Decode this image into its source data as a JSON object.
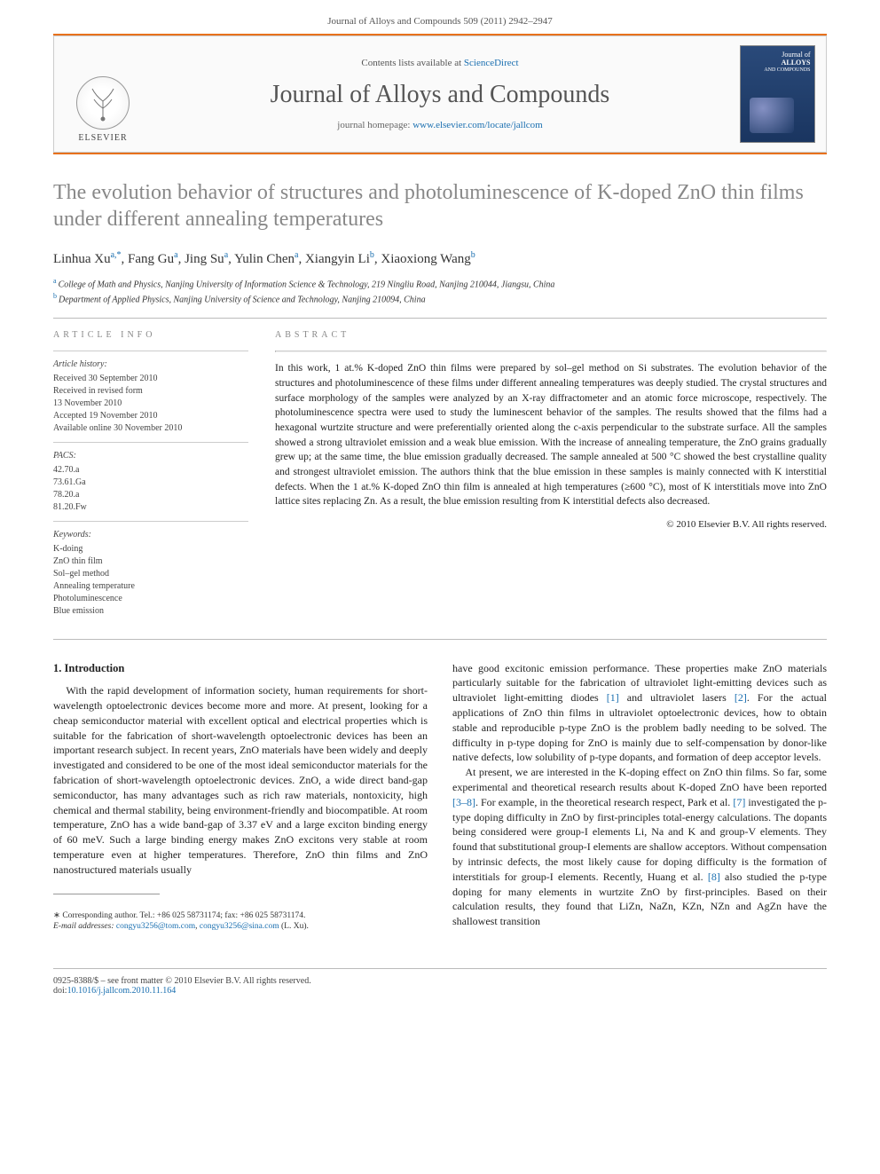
{
  "runningHead": "Journal of Alloys and Compounds 509 (2011) 2942–2947",
  "masthead": {
    "contentsPrefix": "Contents lists available at ",
    "contentsLink": "ScienceDirect",
    "journalTitle": "Journal of Alloys and Compounds",
    "homepagePrefix": "journal homepage: ",
    "homepageUrl": "www.elsevier.com/locate/jallcom",
    "publisher": "ELSEVIER",
    "coverLine1": "Journal of",
    "coverLine2": "ALLOYS",
    "coverLine3": "AND COMPOUNDS"
  },
  "article": {
    "title": "The evolution behavior of structures and photoluminescence of K-doped ZnO thin films under different annealing temperatures",
    "authorsHtml": "Linhua Xu",
    "authors": [
      {
        "name": "Linhua Xu",
        "aff": "a,",
        "corr": "*"
      },
      {
        "name": "Fang Gu",
        "aff": "a"
      },
      {
        "name": "Jing Su",
        "aff": "a"
      },
      {
        "name": "Yulin Chen",
        "aff": "a"
      },
      {
        "name": "Xiangyin Li",
        "aff": "b"
      },
      {
        "name": "Xiaoxiong Wang",
        "aff": "b"
      }
    ],
    "affiliations": [
      {
        "label": "a",
        "text": "College of Math and Physics, Nanjing University of Information Science & Technology, 219 Ningliu Road, Nanjing 210044, Jiangsu, China"
      },
      {
        "label": "b",
        "text": "Department of Applied Physics, Nanjing University of Science and Technology, Nanjing 210094, China"
      }
    ]
  },
  "info": {
    "headingInfo": "article info",
    "historyHead": "Article history:",
    "history": [
      "Received 30 September 2010",
      "Received in revised form",
      "13 November 2010",
      "Accepted 19 November 2010",
      "Available online 30 November 2010"
    ],
    "pacsHead": "PACS:",
    "pacs": [
      "42.70.a",
      "73.61.Ga",
      "78.20.a",
      "81.20.Fw"
    ],
    "keywordsHead": "Keywords:",
    "keywords": [
      "K-doing",
      "ZnO thin film",
      "Sol–gel method",
      "Annealing temperature",
      "Photoluminescence",
      "Blue emission"
    ]
  },
  "abstract": {
    "heading": "abstract",
    "text": "In this work, 1 at.% K-doped ZnO thin films were prepared by sol–gel method on Si substrates. The evolution behavior of the structures and photoluminescence of these films under different annealing temperatures was deeply studied. The crystal structures and surface morphology of the samples were analyzed by an X-ray diffractometer and an atomic force microscope, respectively. The photoluminescence spectra were used to study the luminescent behavior of the samples. The results showed that the films had a hexagonal wurtzite structure and were preferentially oriented along the c-axis perpendicular to the substrate surface. All the samples showed a strong ultraviolet emission and a weak blue emission. With the increase of annealing temperature, the ZnO grains gradually grew up; at the same time, the blue emission gradually decreased. The sample annealed at 500 °C showed the best crystalline quality and strongest ultraviolet emission. The authors think that the blue emission in these samples is mainly connected with K interstitial defects. When the 1 at.% K-doped ZnO thin film is annealed at high temperatures (≥600 °C), most of K interstitials move into ZnO lattice sites replacing Zn. As a result, the blue emission resulting from K interstitial defects also decreased.",
    "copyright": "© 2010 Elsevier B.V. All rights reserved."
  },
  "body": {
    "section1Heading": "1. Introduction",
    "para1": "With the rapid development of information society, human requirements for short-wavelength optoelectronic devices become more and more. At present, looking for a cheap semiconductor material with excellent optical and electrical properties which is suitable for the fabrication of short-wavelength optoelectronic devices has been an important research subject. In recent years, ZnO materials have been widely and deeply investigated and considered to be one of the most ideal semiconductor materials for the fabrication of short-wavelength optoelectronic devices. ZnO, a wide direct band-gap semiconductor, has many advantages such as rich raw materials, nontoxicity, high chemical and thermal stability, being environment-friendly and biocompatible. At room temperature, ZnO has a wide band-gap of 3.37 eV and a large exciton binding energy of 60 meV. Such a large binding energy makes ZnO excitons very stable at room temperature even at higher temperatures. Therefore, ZnO thin films and ZnO nanostructured materials usually",
    "para2": "have good excitonic emission performance. These properties make ZnO materials particularly suitable for the fabrication of ultraviolet light-emitting devices such as ultraviolet light-emitting diodes [1] and ultraviolet lasers [2]. For the actual applications of ZnO thin films in ultraviolet optoelectronic devices, how to obtain stable and reproducible p-type ZnO is the problem badly needing to be solved. The difficulty in p-type doping for ZnO is mainly due to self-compensation by donor-like native defects, low solubility of p-type dopants, and formation of deep acceptor levels.",
    "para3": "At present, we are interested in the K-doping effect on ZnO thin films. So far, some experimental and theoretical research results about K-doped ZnO have been reported [3–8]. For example, in the theoretical research respect, Park et al. [7] investigated the p-type doping difficulty in ZnO by first-principles total-energy calculations. The dopants being considered were group-I elements Li, Na and K and group-V elements. They found that substitutional group-I elements are shallow acceptors. Without compensation by intrinsic defects, the most likely cause for doping difficulty is the formation of interstitials for group-I elements. Recently, Huang et al. [8] also studied the p-type doping for many elements in wurtzite ZnO by first-principles. Based on their calculation results, they found that LiZn, NaZn, KZn, NZn and AgZn have the shallowest transition"
  },
  "corr": {
    "starLine": "∗ Corresponding author. Tel.: +86 025 58731174; fax: +86 025 58731174.",
    "emailLabel": "E-mail addresses:",
    "email1": "congyu3256@tom.com",
    "email2": "congyu3256@sina.com",
    "emailSuffix": " (L. Xu)."
  },
  "footer": {
    "issn": "0925-8388/$ – see front matter © 2010 Elsevier B.V. All rights reserved.",
    "doiLabel": "doi:",
    "doi": "10.1016/j.jallcom.2010.11.164"
  },
  "colors": {
    "orange": "#e8711c",
    "link": "#1a6fb0",
    "titleGrey": "#888888"
  }
}
